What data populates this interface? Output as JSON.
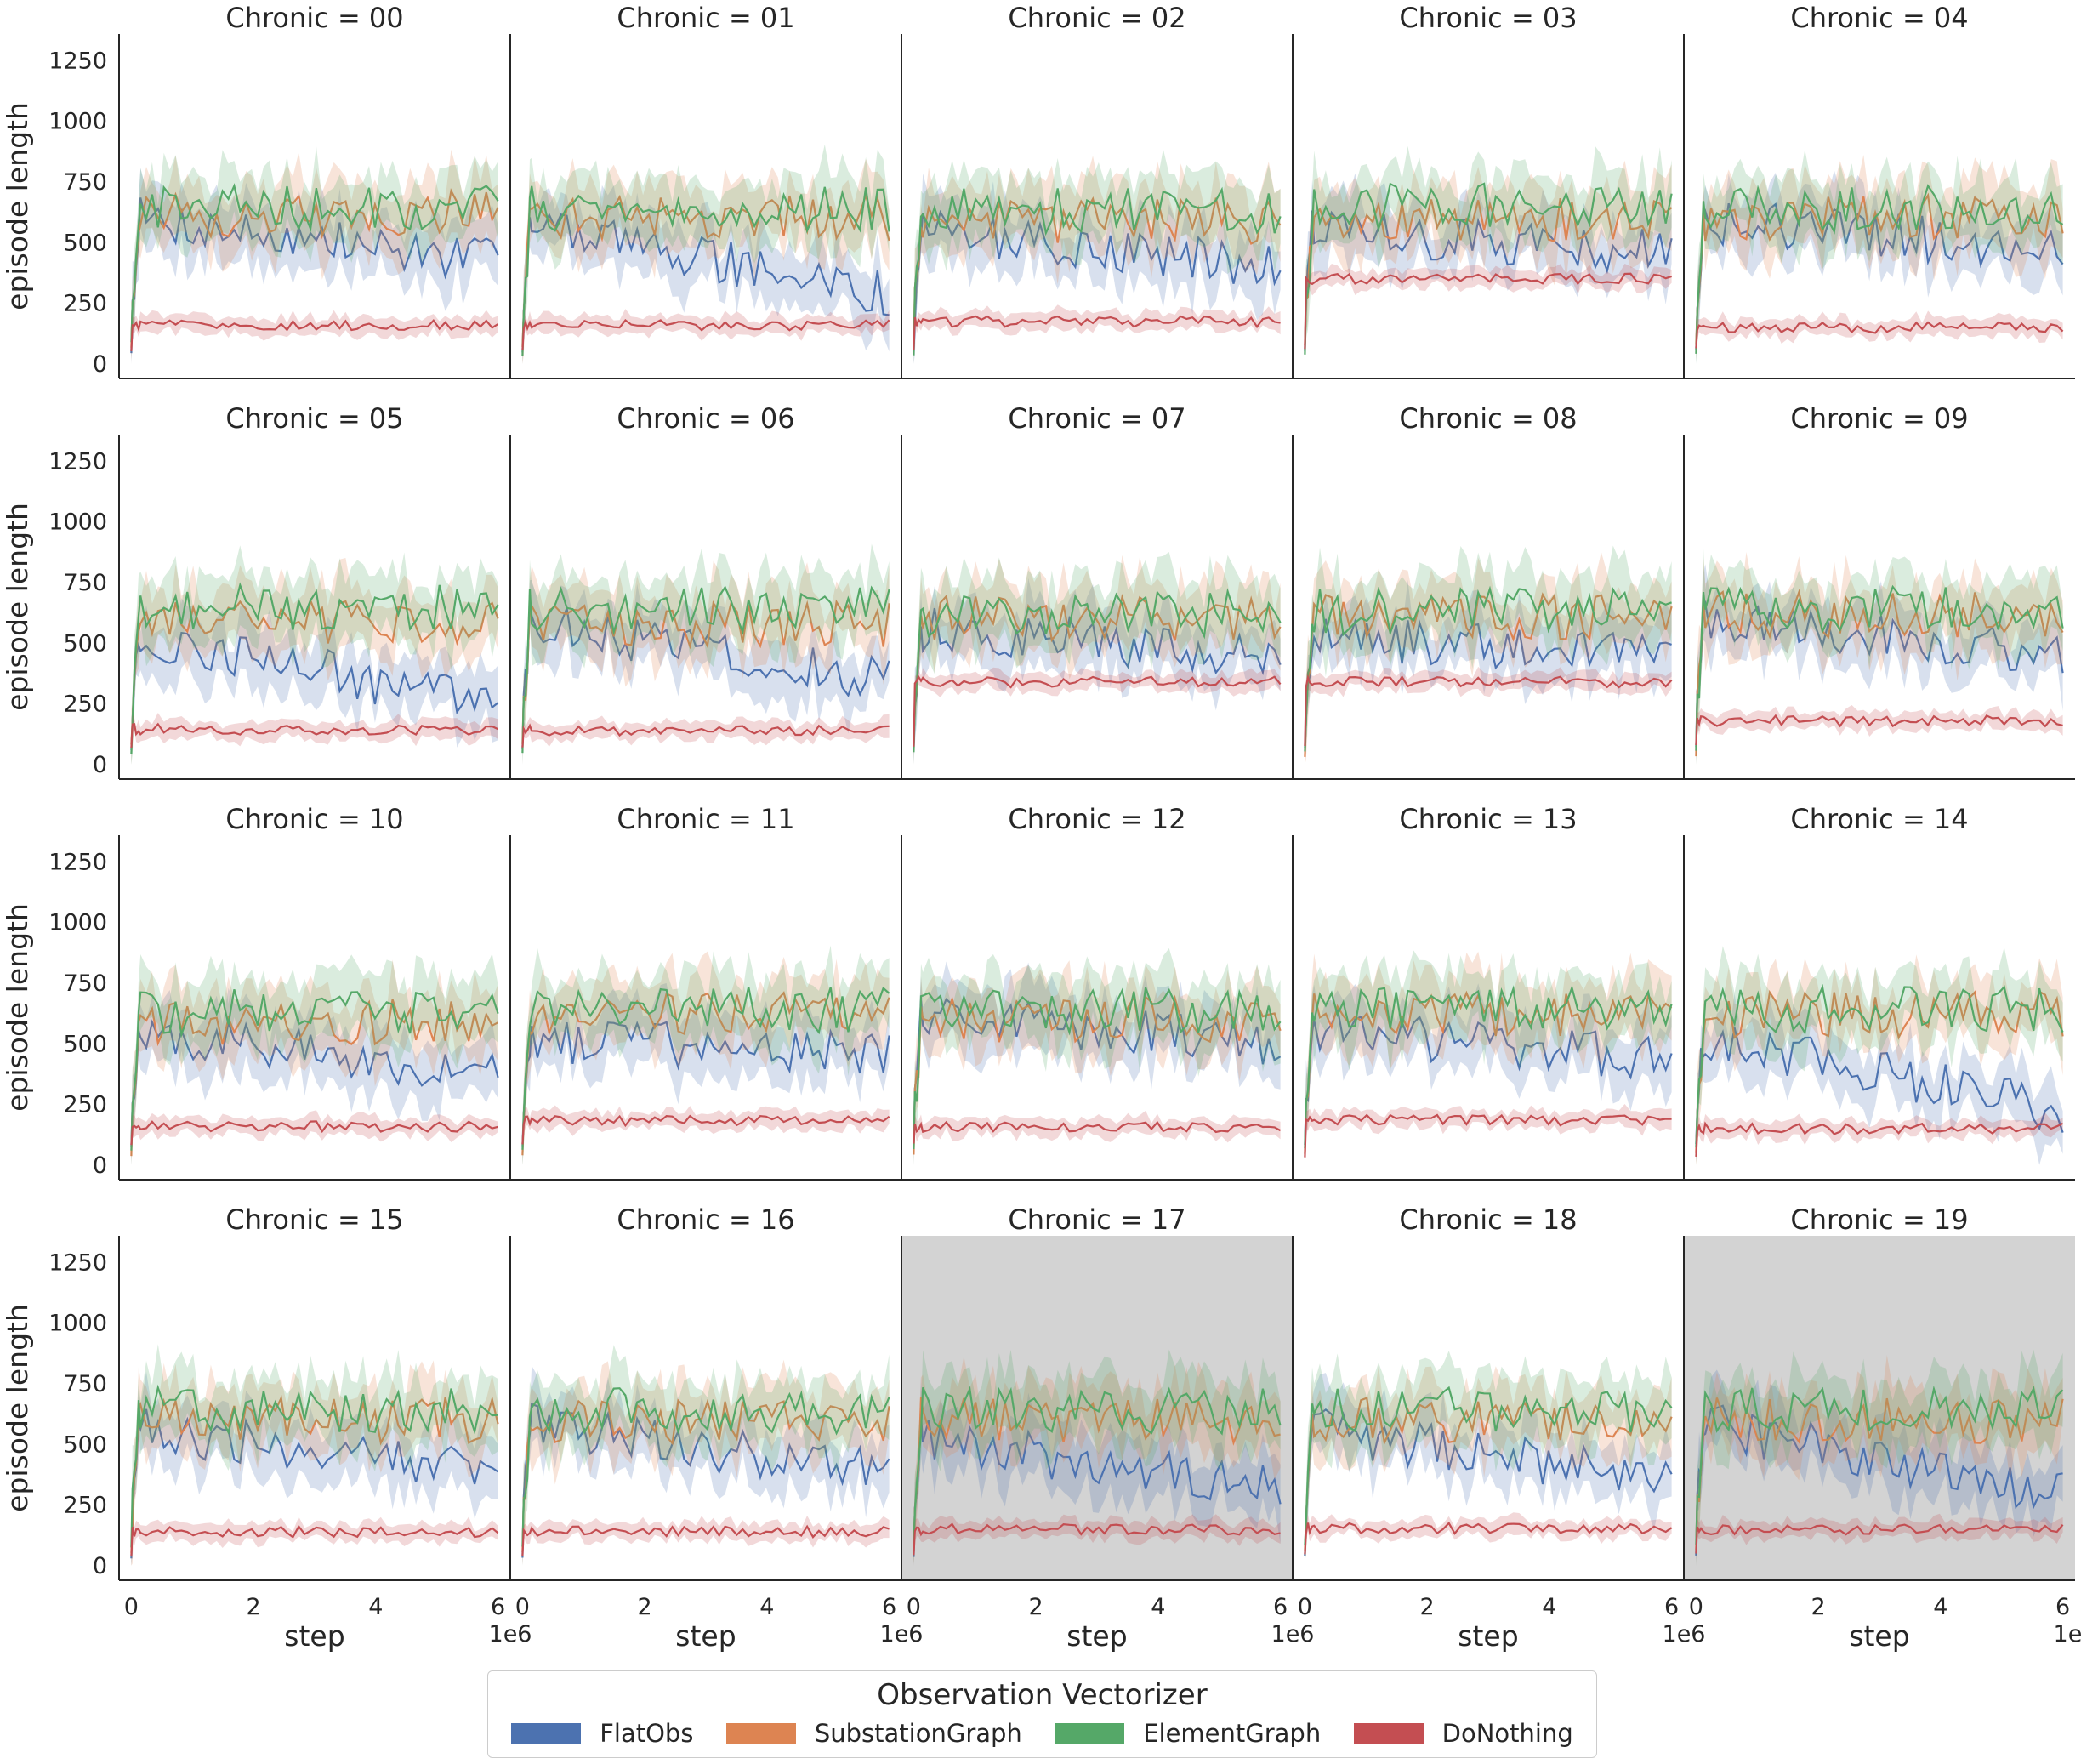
{
  "chart_data": {
    "type": "line",
    "figure": "faceted grid of line plots with confidence bands",
    "ylabel": "episode length",
    "xlabel": "step",
    "x_offset_label": "1e6",
    "xlim": [
      -0.2,
      6.2
    ],
    "ylim": [
      -60,
      1360
    ],
    "x_ticks": [
      0,
      2,
      4,
      6
    ],
    "x_tick_labels": [
      "0",
      "2",
      "4",
      "6"
    ],
    "y_ticks": [
      0,
      250,
      500,
      750,
      1000,
      1250
    ],
    "y_tick_labels": [
      "0",
      "250",
      "500",
      "750",
      "1000",
      "1250"
    ],
    "panel_title_prefix": "Chronic = ",
    "chronics": [
      "00",
      "01",
      "02",
      "03",
      "04",
      "05",
      "06",
      "07",
      "08",
      "09",
      "10",
      "11",
      "12",
      "13",
      "14",
      "15",
      "16",
      "17",
      "18",
      "19"
    ],
    "highlighted_chronics": [
      "17",
      "19"
    ],
    "legend": {
      "title": "Observation Vectorizer",
      "position": "bottom-center",
      "entries": [
        "FlatObs",
        "SubstationGraph",
        "ElementGraph",
        "DoNothing"
      ]
    },
    "colors": {
      "FlatObs": "#4c72b0",
      "SubstationGraph": "#dd8452",
      "ElementGraph": "#55a868",
      "DoNothing": "#c44e52",
      "highlight_background": "#d3d3d3"
    },
    "series_levels": {
      "FlatObs": [
        600,
        570,
        560,
        540,
        590,
        540,
        600,
        560,
        530,
        590,
        560,
        520,
        630,
        570,
        540,
        560,
        580,
        530,
        560,
        590
      ],
      "SubstationGraph": [
        620,
        600,
        590,
        590,
        600,
        590,
        580,
        600,
        610,
        620,
        590,
        620,
        600,
        620,
        620,
        600,
        600,
        600,
        600,
        600
      ],
      "ElementGraph": [
        650,
        640,
        630,
        650,
        640,
        650,
        640,
        620,
        630,
        640,
        630,
        640,
        640,
        640,
        640,
        640,
        640,
        640,
        640,
        640
      ],
      "DoNothing": [
        160,
        160,
        175,
        350,
        150,
        145,
        140,
        340,
        340,
        180,
        160,
        185,
        155,
        185,
        150,
        140,
        140,
        150,
        155,
        150
      ]
    },
    "series_trends": {
      "FlatObs": [
        -180,
        -280,
        -160,
        -80,
        -120,
        -300,
        -260,
        -120,
        -80,
        -140,
        -200,
        -60,
        -140,
        -140,
        -320,
        -160,
        -200,
        -220,
        -200,
        -300
      ]
    },
    "band_halfwidth": {
      "FlatObs": 120,
      "SubstationGraph": 130,
      "ElementGraph": 130,
      "DoNothing": 35
    }
  },
  "legend": {
    "title": "Observation Vectorizer",
    "items": [
      {
        "label": "FlatObs",
        "color": "#4c72b0"
      },
      {
        "label": "SubstationGraph",
        "color": "#dd8452"
      },
      {
        "label": "ElementGraph",
        "color": "#55a868"
      },
      {
        "label": "DoNothing",
        "color": "#c44e52"
      }
    ]
  }
}
